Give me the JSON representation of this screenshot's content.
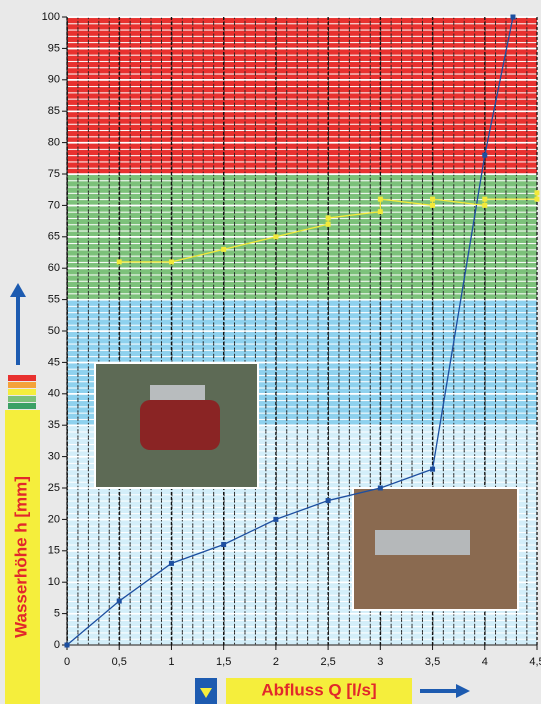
{
  "chart_data": {
    "type": "line",
    "x_label": "Abfluss Q [l/s]",
    "y_label": "Wasserhöhe h [mm]",
    "xlim": [
      0,
      4.5
    ],
    "ylim": [
      0,
      100
    ],
    "xticks": [
      0,
      {
        "value": 0.5,
        "label": "0,5"
      },
      1,
      {
        "value": 1.5,
        "label": "1,5"
      },
      2,
      {
        "value": 2.5,
        "label": "2,5"
      },
      3,
      {
        "value": 3.5,
        "label": "3,5"
      },
      4,
      {
        "value": 4.5,
        "label": "4,5"
      }
    ],
    "yticks": [
      0,
      5,
      10,
      15,
      20,
      25,
      30,
      35,
      40,
      45,
      50,
      55,
      60,
      65,
      70,
      75,
      80,
      85,
      90,
      95,
      100
    ],
    "bands": [
      {
        "from": 75,
        "to": 100,
        "color": "#e8312f"
      },
      {
        "from": 55,
        "to": 75,
        "color": "#7cc17a"
      },
      {
        "from": 35,
        "to": 55,
        "color": "#8ed1ee"
      },
      {
        "from": 0,
        "to": 35,
        "color": "#d3eef9"
      }
    ],
    "grid": true,
    "series": [
      {
        "color": "#1d4fa0",
        "x": [
          0,
          0.5,
          1,
          1.5,
          2,
          2.5,
          3,
          3.5,
          4,
          4.27
        ],
        "values": [
          0,
          7,
          13,
          16,
          20,
          23,
          25,
          28,
          78,
          100
        ]
      },
      {
        "color": "#f2e93a",
        "x": [
          0.5,
          1,
          1.5,
          2,
          2.5,
          2.5,
          3,
          3,
          3.5,
          3.5,
          4,
          4,
          4.5,
          4.5
        ],
        "values": [
          61,
          61,
          63,
          65,
          67,
          68,
          69,
          71,
          70,
          71,
          70,
          71,
          71,
          72
        ]
      }
    ]
  }
}
